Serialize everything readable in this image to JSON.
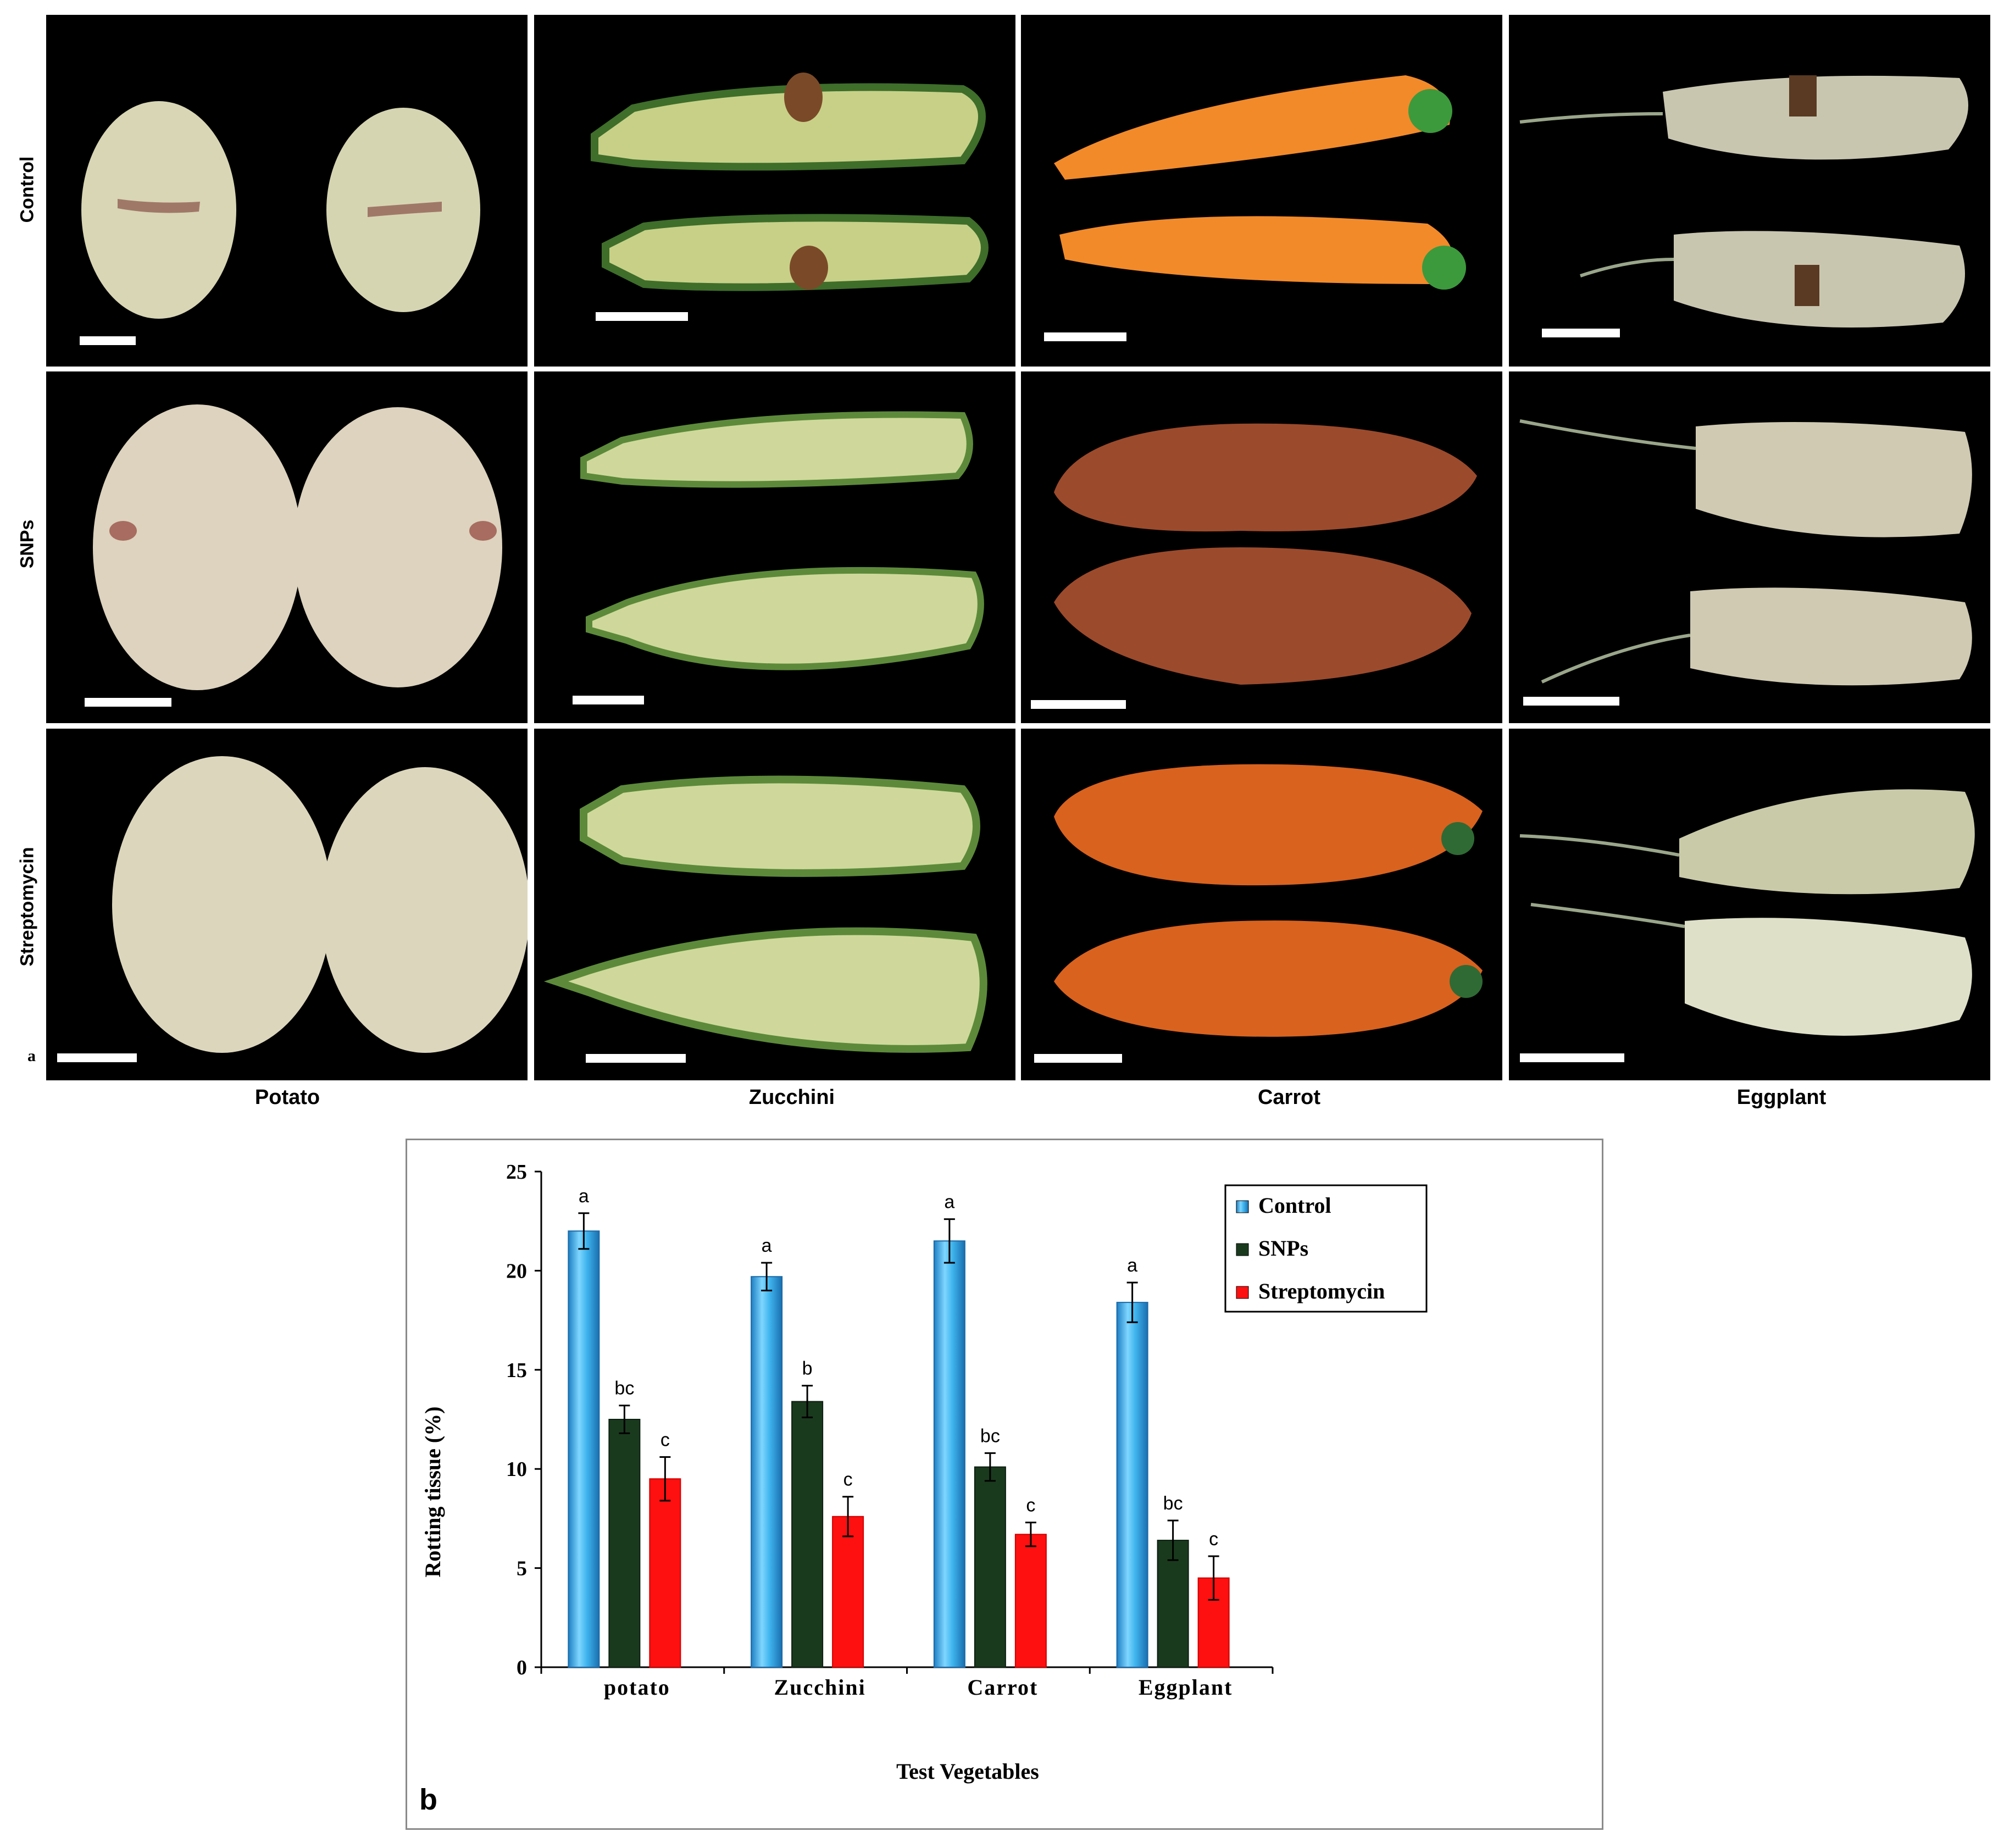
{
  "panel_a": {
    "letter": "a",
    "rows": [
      "Control",
      "SNPs",
      "Streptomycin"
    ],
    "columns": [
      "Potato",
      "Zucchini",
      "Carrot",
      "Eggplant"
    ]
  },
  "chart_data": {
    "type": "bar",
    "panel_letter": "b",
    "title": "",
    "xlabel": "Test Vegetables",
    "ylabel": "Rotting tissue (%)",
    "categories": [
      "potato",
      "Zucchini",
      "Carrot",
      "Eggplant"
    ],
    "ylim": [
      0,
      25
    ],
    "yticks": [
      0,
      5,
      10,
      15,
      20,
      25
    ],
    "legend_position": "top-right",
    "series": [
      {
        "name": "Control",
        "color": "#3aaee8",
        "values": [
          22.0,
          19.7,
          21.5,
          18.4
        ],
        "errors": [
          0.9,
          0.7,
          1.1,
          1.0
        ],
        "labels": [
          "a",
          "a",
          "a",
          "a"
        ]
      },
      {
        "name": "SNPs",
        "color": "#1a3a1e",
        "values": [
          12.5,
          13.4,
          10.1,
          6.4
        ],
        "errors": [
          0.7,
          0.8,
          0.7,
          1.0
        ],
        "labels": [
          "bc",
          "b",
          "bc",
          "bc"
        ]
      },
      {
        "name": "Streptomycin",
        "color": "#ff1010",
        "values": [
          9.5,
          7.6,
          6.7,
          4.5
        ],
        "errors": [
          1.1,
          1.0,
          0.6,
          1.1
        ],
        "labels": [
          "c",
          "c",
          "c",
          "c"
        ]
      }
    ]
  }
}
